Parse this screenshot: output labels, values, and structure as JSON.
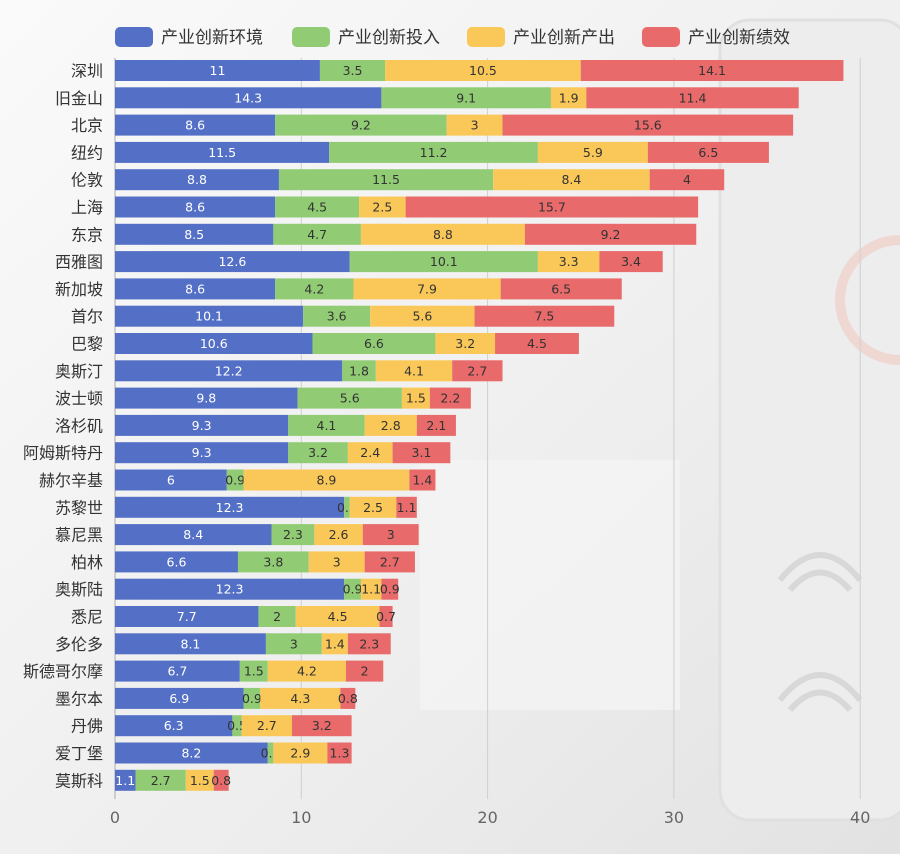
{
  "colors": {
    "env": "#5470c6",
    "input": "#91cc75",
    "output": "#fac858",
    "perf": "#e86a6a"
  },
  "chart_data": {
    "type": "bar",
    "orientation": "horizontal",
    "stacked": true,
    "legend_position": "top",
    "grid": "vertical",
    "xlim": [
      0,
      40
    ],
    "xticks": [
      0,
      10,
      20,
      30,
      40
    ],
    "categories": [
      "深圳",
      "旧金山",
      "北京",
      "纽约",
      "伦敦",
      "上海",
      "东京",
      "西雅图",
      "新加坡",
      "首尔",
      "巴黎",
      "奥斯汀",
      "波士顿",
      "洛杉矶",
      "阿姆斯特丹",
      "赫尔辛基",
      "苏黎世",
      "慕尼黑",
      "柏林",
      "奥斯陆",
      "悉尼",
      "多伦多",
      "斯德哥尔摩",
      "墨尔本",
      "丹佛",
      "爱丁堡",
      "莫斯科"
    ],
    "series": [
      {
        "name": "产业创新环境",
        "color_key": "env",
        "values": [
          11,
          14.3,
          8.6,
          11.5,
          8.8,
          8.6,
          8.5,
          12.6,
          8.6,
          10.1,
          10.6,
          12.2,
          9.8,
          9.3,
          9.3,
          6,
          12.3,
          8.4,
          6.6,
          12.3,
          7.7,
          8.1,
          6.7,
          6.9,
          6.3,
          8.2,
          1.1
        ]
      },
      {
        "name": "产业创新投入",
        "color_key": "input",
        "values": [
          3.5,
          9.1,
          9.2,
          11.2,
          11.5,
          4.5,
          4.7,
          10.1,
          4.2,
          3.6,
          6.6,
          1.8,
          5.6,
          4.1,
          3.2,
          0.9,
          0.3,
          2.3,
          3.8,
          0.9,
          2,
          3,
          1.5,
          0.9,
          0.5,
          0.3,
          2.7
        ]
      },
      {
        "name": "产业创新产出",
        "color_key": "output",
        "values": [
          10.5,
          1.9,
          3,
          5.9,
          8.4,
          2.5,
          8.8,
          3.3,
          7.9,
          5.6,
          3.2,
          4.1,
          1.5,
          2.8,
          2.4,
          8.9,
          2.5,
          2.6,
          3,
          1.1,
          4.5,
          1.4,
          4.2,
          4.3,
          2.7,
          2.9,
          1.5
        ]
      },
      {
        "name": "产业创新绩效",
        "color_key": "perf",
        "values": [
          14.1,
          11.4,
          15.6,
          6.5,
          4,
          15.7,
          9.2,
          3.4,
          6.5,
          7.5,
          4.5,
          2.7,
          2.2,
          2.1,
          3.1,
          1.4,
          1.1,
          3,
          2.7,
          0.9,
          0.7,
          2.3,
          2,
          0.8,
          3.2,
          1.3,
          0.8
        ]
      }
    ]
  }
}
